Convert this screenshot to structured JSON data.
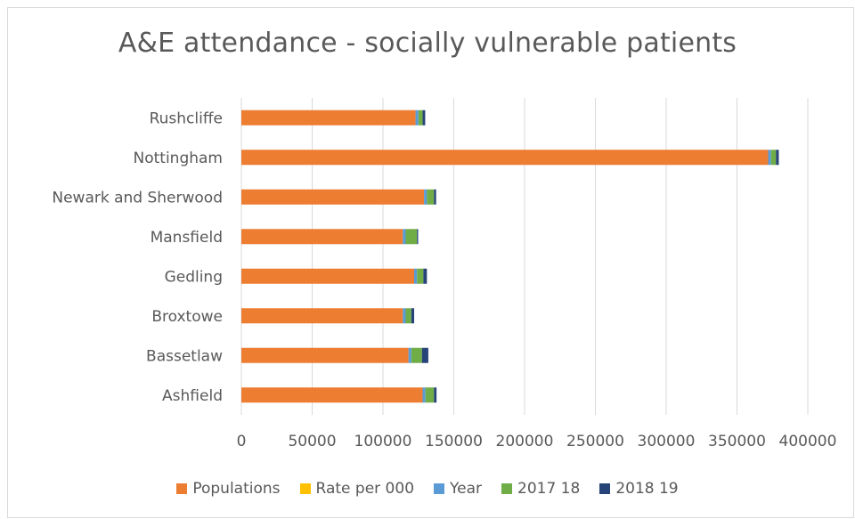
{
  "chart_data": {
    "type": "bar",
    "orientation": "horizontal",
    "stacked": true,
    "title": "A&E attendance - socially vulnerable patients",
    "xlabel": "",
    "ylabel": "",
    "categories": [
      "Ashfield",
      "Bassetlaw",
      "Broxtowe",
      "Gedling",
      "Mansfield",
      "Newark and Sherwood",
      "Nottingham",
      "Rushcliffe"
    ],
    "series": [
      {
        "name": "Populations",
        "color": "#ED7D31",
        "values": [
          128000,
          118000,
          114000,
          122000,
          114000,
          129000,
          372000,
          123000
        ]
      },
      {
        "name": "Rate per 000",
        "color": "#FFC000",
        "values": [
          5,
          10,
          6,
          6,
          7,
          6,
          4,
          5
        ]
      },
      {
        "name": "Year",
        "color": "#5B9BD5",
        "values": [
          2019,
          2019,
          2019,
          2019,
          2019,
          2019,
          2019,
          2019
        ]
      },
      {
        "name": "2017 18",
        "color": "#70AD47",
        "values": [
          6000,
          7500,
          4000,
          4500,
          8000,
          5000,
          3500,
          3000
        ]
      },
      {
        "name": "2018 19",
        "color": "#264478",
        "values": [
          1800,
          4500,
          2000,
          2500,
          800,
          1500,
          2000,
          1800
        ]
      }
    ],
    "xlim": [
      0,
      400000
    ],
    "xticks": [
      "0",
      "50000",
      "100000",
      "150000",
      "200000",
      "250000",
      "300000",
      "350000",
      "400000"
    ],
    "grid": true,
    "legend_position": "bottom"
  }
}
